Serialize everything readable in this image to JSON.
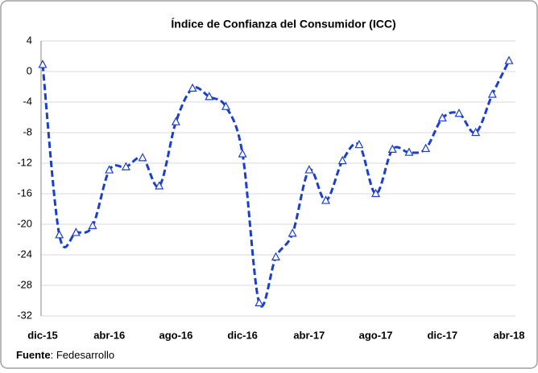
{
  "chart_data": {
    "type": "line",
    "title": "Índice de Confianza del Consumidor (ICC)",
    "categories": [
      "dic-15",
      null,
      null,
      null,
      "abr-16",
      null,
      null,
      null,
      "ago-16",
      null,
      null,
      null,
      "dic-16",
      null,
      null,
      null,
      "abr-17",
      null,
      null,
      null,
      "ago-17",
      null,
      null,
      null,
      "dic-17",
      null,
      null,
      null,
      "abr-18"
    ],
    "series": [
      {
        "name": "ICC",
        "color": "#1a3fcc",
        "values": [
          0.9,
          -21.4,
          -21.1,
          -20.2,
          -12.9,
          -12.5,
          -11.3,
          -15.0,
          -6.6,
          -2.2,
          -3.3,
          -4.6,
          -10.8,
          -30.3,
          -24.3,
          -21.2,
          -12.9,
          -16.9,
          -11.7,
          -9.6,
          -16.0,
          -10.2,
          -10.6,
          -10.1,
          -6.1,
          -5.5,
          -8.0,
          -3.0,
          1.4
        ]
      }
    ],
    "ylim": [
      -32,
      4
    ],
    "yticks": [
      -32,
      -28,
      -24,
      -20,
      -16,
      -12,
      -8,
      -4,
      0,
      4
    ],
    "grid": true,
    "source_label": "Fuente",
    "source": ": Fedesarrollo"
  }
}
